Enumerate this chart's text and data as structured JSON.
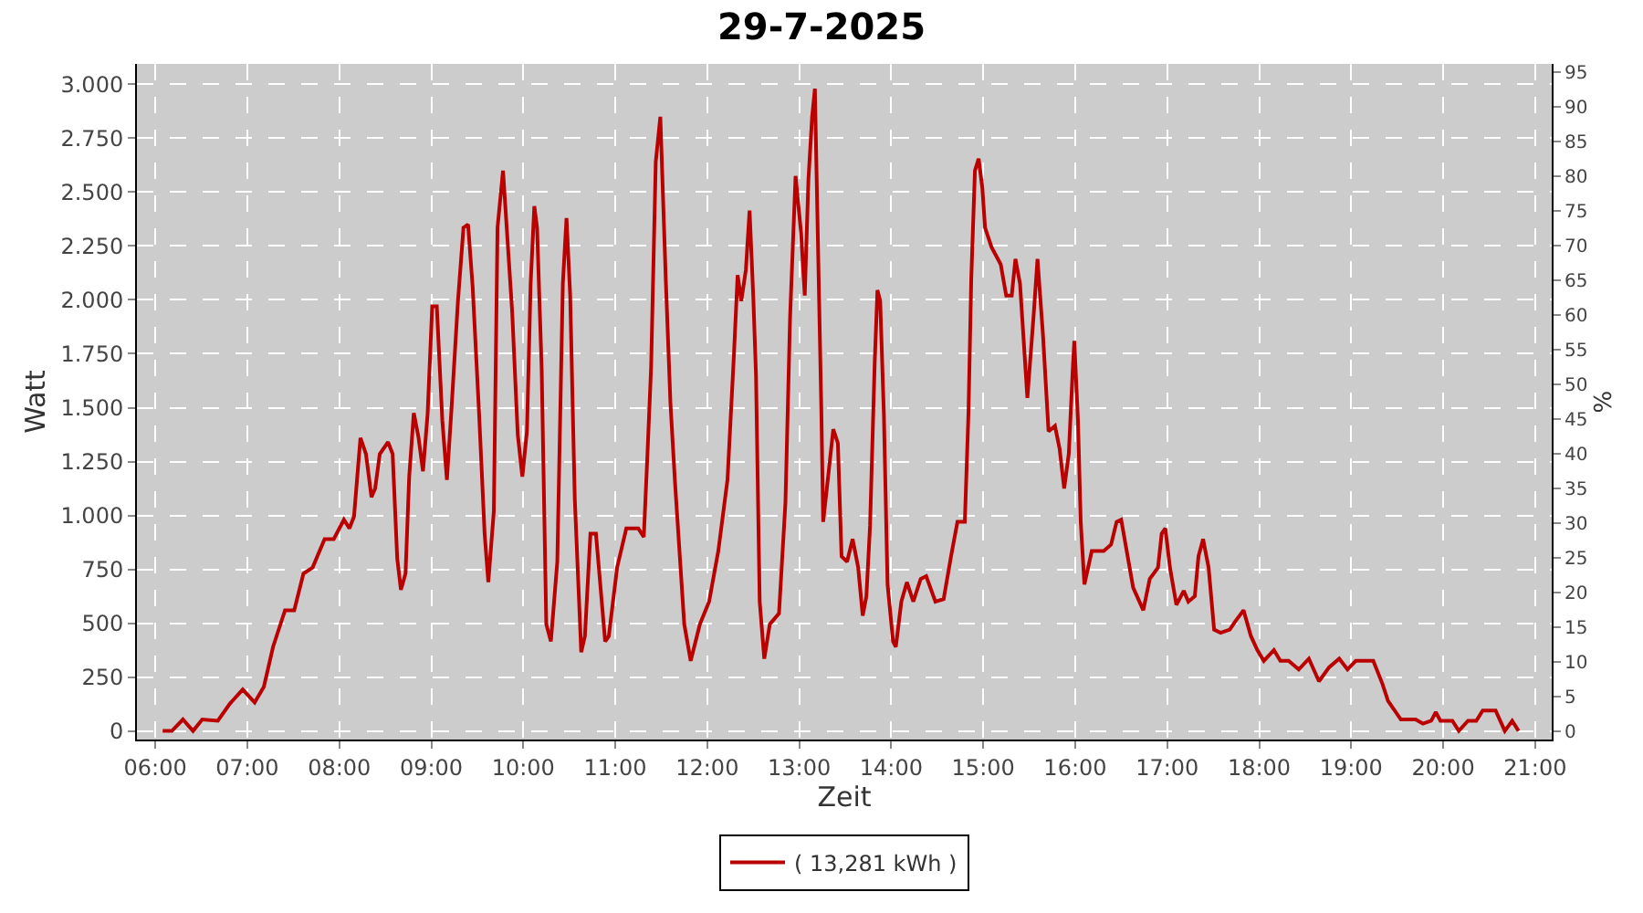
{
  "chart_data": {
    "type": "line",
    "title": "29-7-2025",
    "xlabel": "Zeit",
    "ylabel": "Watt",
    "y2label": "%",
    "x": [
      6.08,
      6.18,
      6.3,
      6.41,
      6.51,
      6.68,
      6.81,
      6.95,
      7.08,
      7.18,
      7.28,
      7.41,
      7.51,
      7.61,
      7.71,
      7.84,
      7.94,
      8.05,
      8.11,
      8.16,
      8.23,
      8.29,
      8.35,
      8.39,
      8.44,
      8.53,
      8.58,
      8.63,
      8.67,
      8.72,
      8.76,
      8.81,
      8.86,
      8.91,
      8.96,
      9.01,
      9.06,
      9.12,
      9.17,
      9.22,
      9.29,
      9.35,
      9.4,
      9.45,
      9.52,
      9.58,
      9.62,
      9.68,
      9.72,
      9.78,
      9.82,
      9.88,
      9.94,
      9.99,
      10.04,
      10.08,
      10.12,
      10.15,
      10.2,
      10.25,
      10.3,
      10.37,
      10.43,
      10.47,
      10.51,
      10.56,
      10.63,
      10.67,
      10.73,
      10.79,
      10.89,
      10.93,
      11.02,
      11.12,
      11.25,
      11.31,
      11.35,
      11.39,
      11.44,
      11.49,
      11.55,
      11.6,
      11.65,
      11.75,
      11.82,
      11.92,
      12.02,
      12.12,
      12.22,
      12.29,
      12.33,
      12.37,
      12.42,
      12.46,
      12.5,
      12.53,
      12.57,
      12.62,
      12.68,
      12.78,
      12.85,
      12.9,
      12.96,
      13.02,
      13.06,
      13.1,
      13.14,
      13.17,
      13.2,
      13.24,
      13.26,
      13.3,
      13.37,
      13.42,
      13.46,
      13.52,
      13.58,
      13.64,
      13.69,
      13.73,
      13.77,
      13.82,
      13.85,
      13.88,
      13.92,
      13.96,
      14.02,
      14.05,
      14.11,
      14.17,
      14.24,
      14.32,
      14.38,
      14.48,
      14.57,
      14.65,
      14.72,
      14.8,
      14.84,
      14.87,
      14.91,
      14.95,
      14.99,
      15.02,
      15.09,
      15.19,
      15.25,
      15.31,
      15.35,
      15.4,
      15.48,
      15.55,
      15.59,
      15.65,
      15.71,
      15.78,
      15.83,
      15.88,
      15.93,
      15.97,
      15.99,
      16.03,
      16.06,
      16.1,
      16.18,
      16.31,
      16.39,
      16.45,
      16.5,
      16.57,
      16.63,
      16.74,
      16.81,
      16.9,
      16.94,
      16.98,
      17.03,
      17.1,
      17.18,
      17.23,
      17.3,
      17.34,
      17.39,
      17.45,
      17.51,
      17.58,
      17.68,
      17.74,
      17.83,
      17.91,
      17.98,
      18.05,
      18.16,
      18.23,
      18.32,
      18.43,
      18.54,
      18.65,
      18.76,
      18.87,
      18.96,
      19.05,
      19.24,
      19.34,
      19.4,
      19.54,
      19.7,
      19.78,
      19.87,
      19.92,
      19.97,
      20.1,
      20.17,
      20.27,
      20.36,
      20.43,
      20.57,
      20.67,
      20.75,
      20.82
    ],
    "series": [
      {
        "name": "( 13,281 kWh )",
        "color": "#bb0000",
        "values": [
          0,
          0,
          53,
          0,
          53,
          47,
          126,
          192,
          132,
          205,
          390,
          560,
          560,
          730,
          758,
          890,
          890,
          980,
          940,
          995,
          1360,
          1285,
          1085,
          1125,
          1285,
          1340,
          1285,
          800,
          655,
          730,
          1180,
          1475,
          1365,
          1205,
          1470,
          1970,
          1970,
          1440,
          1165,
          1495,
          1995,
          2335,
          2350,
          2060,
          1470,
          915,
          690,
          1020,
          2335,
          2600,
          2335,
          1940,
          1375,
          1180,
          1390,
          2075,
          2435,
          2335,
          1680,
          495,
          415,
          785,
          2075,
          2380,
          2020,
          1075,
          365,
          440,
          915,
          915,
          415,
          440,
          758,
          940,
          940,
          900,
          1285,
          1690,
          2640,
          2850,
          2085,
          1520,
          1150,
          495,
          325,
          495,
          600,
          835,
          1165,
          1745,
          2115,
          1995,
          2140,
          2415,
          2020,
          1650,
          600,
          335,
          495,
          545,
          1060,
          1915,
          2575,
          2310,
          2020,
          2560,
          2850,
          2980,
          2335,
          1495,
          970,
          1125,
          1400,
          1335,
          810,
          785,
          890,
          760,
          535,
          625,
          955,
          1705,
          2045,
          1995,
          1470,
          680,
          415,
          390,
          600,
          690,
          600,
          705,
          718,
          600,
          612,
          810,
          970,
          970,
          1480,
          2100,
          2600,
          2655,
          2520,
          2335,
          2245,
          2165,
          2020,
          2020,
          2190,
          2075,
          1545,
          1940,
          2190,
          1835,
          1390,
          1415,
          1310,
          1125,
          1285,
          1650,
          1810,
          1440,
          970,
          680,
          835,
          835,
          865,
          970,
          980,
          810,
          665,
          560,
          705,
          758,
          915,
          940,
          758,
          585,
          650,
          600,
          625,
          810,
          890,
          758,
          470,
          455,
          470,
          508,
          560,
          440,
          375,
          325,
          375,
          325,
          325,
          285,
          335,
          230,
          295,
          335,
          285,
          325,
          325,
          218,
          140,
          53,
          53,
          34,
          47,
          87,
          47,
          47,
          0,
          47,
          47,
          95,
          95,
          0,
          47,
          0
        ]
      }
    ],
    "xlim": [
      5.8,
      21.18
    ],
    "xticks": [
      {
        "value": 6,
        "label": "06:00"
      },
      {
        "value": 7,
        "label": "07:00"
      },
      {
        "value": 8,
        "label": "08:00"
      },
      {
        "value": 9,
        "label": "09:00"
      },
      {
        "value": 10,
        "label": "10:00"
      },
      {
        "value": 11,
        "label": "11:00"
      },
      {
        "value": 12,
        "label": "12:00"
      },
      {
        "value": 13,
        "label": "13:00"
      },
      {
        "value": 14,
        "label": "14:00"
      },
      {
        "value": 15,
        "label": "15:00"
      },
      {
        "value": 16,
        "label": "16:00"
      },
      {
        "value": 17,
        "label": "17:00"
      },
      {
        "value": 18,
        "label": "18:00"
      },
      {
        "value": 19,
        "label": "19:00"
      },
      {
        "value": 20,
        "label": "20:00"
      },
      {
        "value": 21,
        "label": "21:00"
      }
    ],
    "ylim": [
      -40,
      3095
    ],
    "yticks": [
      0,
      250,
      500,
      750,
      {
        "value": 1000,
        "label": "1.000"
      },
      {
        "value": 1250,
        "label": "1.250"
      },
      {
        "value": 1500,
        "label": "1.500"
      },
      {
        "value": 1750,
        "label": "1.750"
      },
      {
        "value": 2000,
        "label": "2.000"
      },
      {
        "value": 2250,
        "label": "2.250"
      },
      {
        "value": 2500,
        "label": "2.500"
      },
      {
        "value": 2750,
        "label": "2.750"
      },
      {
        "value": 3000,
        "label": "3.000"
      }
    ],
    "y2lim": [
      -1.2,
      96.2
    ],
    "y2ticks": [
      0,
      5,
      10,
      15,
      20,
      25,
      30,
      35,
      40,
      45,
      50,
      55,
      60,
      65,
      70,
      75,
      80,
      85,
      90,
      95
    ],
    "grid": true,
    "legend": "bottom",
    "marker": "none",
    "line_style": "solid"
  }
}
